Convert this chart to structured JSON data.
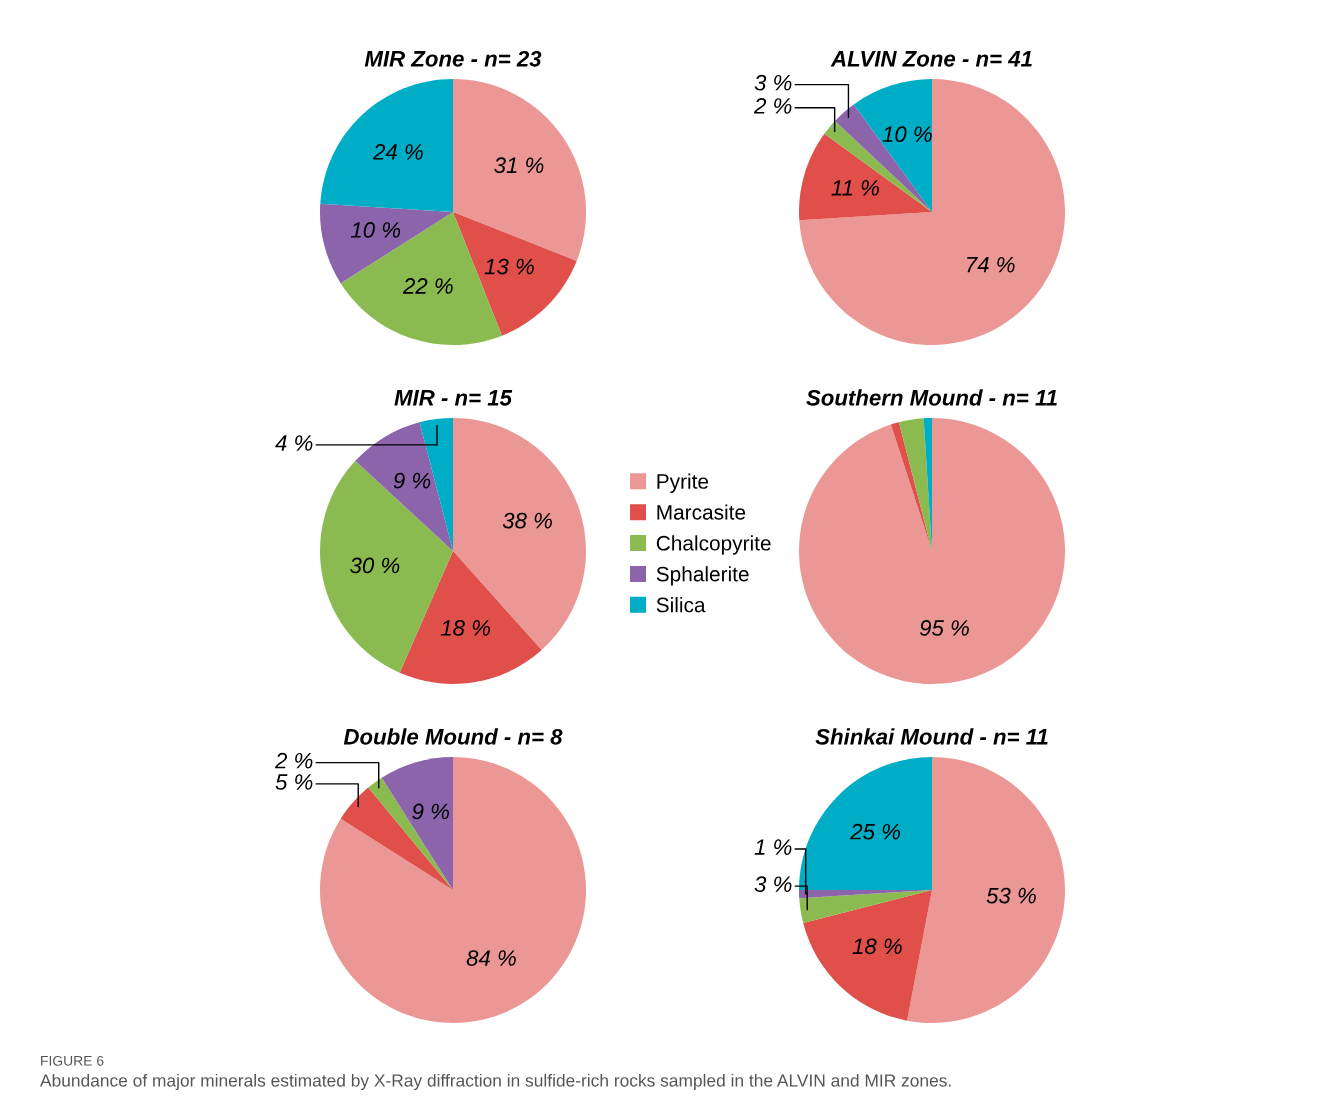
{
  "chart_data": [
    {
      "type": "pie",
      "title": "MIR Zone - n= 23",
      "categories": [
        "Pyrite",
        "Marcasite",
        "Chalcopyrite",
        "Sphalerite",
        "Silica"
      ],
      "colors": [
        "#eb9795",
        "#e04f4a",
        "#8aba50",
        "#8b64ab",
        "#00adc7"
      ],
      "values": [
        31,
        13,
        22,
        10,
        24
      ],
      "value_labels": [
        "31 %",
        "13 %",
        "22 %",
        "10 %",
        "24 %"
      ],
      "legend": "bottom right"
    },
    {
      "type": "pie",
      "title": "ALVIN Zone - n= 41",
      "categories": [
        null,
        null,
        null,
        null,
        null
      ],
      "colors": [
        "#eb9795",
        "#e04f4a",
        "#8aba50",
        "#8b64ab",
        "#00adc7"
      ],
      "values": [
        74,
        11,
        2,
        3,
        10
      ],
      "value_labels": [
        "74 %",
        "11 %",
        "2 %",
        "3 %",
        "10 %"
      ]
    },
    {
      "type": "pie",
      "title": "MIR - n= 15",
      "categories": [
        null,
        null,
        null,
        null,
        null
      ],
      "colors": [
        "#eb9795",
        "#e04f4a",
        "#8aba50",
        "#8b64ab",
        "#00adc7"
      ],
      "values": [
        38,
        18,
        30,
        9,
        4
      ],
      "value_labels": [
        "38 %",
        "18 %",
        "30 %",
        "9 %",
        "4 %"
      ]
    },
    {
      "type": "pie",
      "title": "Southern Mound - n= 11",
      "categories": [
        null,
        null,
        null,
        null,
        null
      ],
      "colors": [
        "#eb9795",
        "#e04f4a",
        "#8aba50",
        "#8b64ab",
        "#00adc7"
      ],
      "values": [
        95,
        1,
        3,
        0,
        1
      ],
      "value_labels": [
        "95 %",
        null,
        null,
        null,
        null
      ]
    },
    {
      "type": "pie",
      "title": "Double Mound - n= 8",
      "categories": [
        null,
        null,
        null,
        null,
        null
      ],
      "colors": [
        "#eb9795",
        "#e04f4a",
        "#8aba50",
        "#8b64ab",
        "#00adc7"
      ],
      "values": [
        84,
        5,
        2,
        9,
        0
      ],
      "value_labels": [
        "84 %",
        "5 %",
        "2 %",
        "9 %",
        null
      ]
    },
    {
      "type": "pie",
      "title": "Shinkai Mound - n= 11",
      "categories": [
        null,
        null,
        null,
        null,
        null
      ],
      "colors": [
        "#eb9795",
        "#e04f4a",
        "#8aba50",
        "#8b64ab",
        "#00adc7"
      ],
      "values": [
        53,
        18,
        3,
        1,
        25
      ],
      "value_labels": [
        "53 %",
        "18 %",
        "3 %",
        "1 %",
        "25 %"
      ],
      "annotations": [
        "FIGURE 6",
        "Abundance of major minerals estimated by X-Ray diffraction in sulfide-rich rocks sampled in the ALVIN and MIR zones."
      ]
    }
  ]
}
